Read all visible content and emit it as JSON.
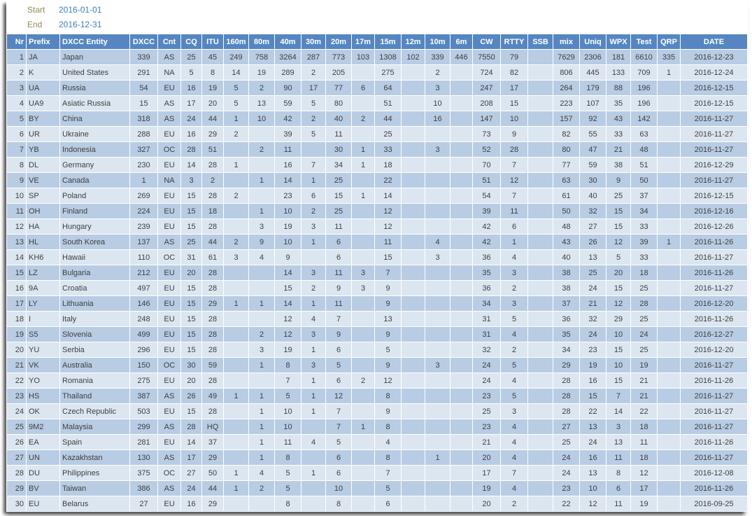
{
  "header": {
    "start_label": "Start",
    "start_value": "2016-01-01",
    "end_label": "End",
    "end_value": "2016-12-31"
  },
  "colors": {
    "header_bg": "#5586C2",
    "row_band_dark": "#B8CCE4",
    "row_band_light": "#DCE6F1",
    "cell_text": "#3F3F3F",
    "start_end_label": "#948A54",
    "start_end_value": "#3C7DC4"
  },
  "table": {
    "columns": [
      "Nr",
      "Prefix",
      "DXCC Entity",
      "DXCC",
      "Cnt",
      "CQ",
      "ITU",
      "160m",
      "80m",
      "40m",
      "30m",
      "20m",
      "17m",
      "15m",
      "12m",
      "10m",
      "6m",
      "CW",
      "RTTY",
      "SSB",
      "mix",
      "Uniq",
      "WPX",
      "Test",
      "QRP",
      "DATE"
    ],
    "rows": [
      [
        "1",
        "JA",
        "Japan",
        "339",
        "AS",
        "25",
        "45",
        "249",
        "758",
        "3264",
        "287",
        "773",
        "103",
        "1308",
        "102",
        "339",
        "446",
        "7550",
        "79",
        "",
        "7629",
        "2306",
        "181",
        "6610",
        "335",
        "2016-12-23"
      ],
      [
        "2",
        "K",
        "United States",
        "291",
        "NA",
        "5",
        "8",
        "14",
        "19",
        "289",
        "2",
        "205",
        "",
        "275",
        "",
        "2",
        "",
        "724",
        "82",
        "",
        "806",
        "445",
        "133",
        "709",
        "1",
        "2016-12-24"
      ],
      [
        "3",
        "UA",
        "Russia",
        "54",
        "EU",
        "16",
        "19",
        "5",
        "2",
        "90",
        "17",
        "77",
        "6",
        "64",
        "",
        "3",
        "",
        "247",
        "17",
        "",
        "264",
        "179",
        "88",
        "196",
        "",
        "2016-12-15"
      ],
      [
        "4",
        "UA9",
        "Asiatic Russia",
        "15",
        "AS",
        "17",
        "20",
        "5",
        "13",
        "59",
        "5",
        "80",
        "",
        "51",
        "",
        "10",
        "",
        "208",
        "15",
        "",
        "223",
        "107",
        "35",
        "196",
        "",
        "2016-12-15"
      ],
      [
        "5",
        "BY",
        "China",
        "318",
        "AS",
        "24",
        "44",
        "1",
        "10",
        "42",
        "2",
        "40",
        "2",
        "44",
        "",
        "16",
        "",
        "147",
        "10",
        "",
        "157",
        "92",
        "43",
        "142",
        "",
        "2016-11-27"
      ],
      [
        "6",
        "UR",
        "Ukraine",
        "288",
        "EU",
        "16",
        "29",
        "2",
        "",
        "39",
        "5",
        "11",
        "",
        "25",
        "",
        "",
        "",
        "73",
        "9",
        "",
        "82",
        "55",
        "33",
        "63",
        "",
        "2016-11-27"
      ],
      [
        "7",
        "YB",
        "Indonesia",
        "327",
        "OC",
        "28",
        "51",
        "",
        "2",
        "11",
        "",
        "30",
        "1",
        "33",
        "",
        "3",
        "",
        "52",
        "28",
        "",
        "80",
        "47",
        "21",
        "48",
        "",
        "2016-11-27"
      ],
      [
        "8",
        "DL",
        "Germany",
        "230",
        "EU",
        "14",
        "28",
        "1",
        "",
        "16",
        "7",
        "34",
        "1",
        "18",
        "",
        "",
        "",
        "70",
        "7",
        "",
        "77",
        "59",
        "38",
        "51",
        "",
        "2016-12-29"
      ],
      [
        "9",
        "VE",
        "Canada",
        "1",
        "NA",
        "3",
        "2",
        "",
        "1",
        "14",
        "1",
        "25",
        "",
        "22",
        "",
        "",
        "",
        "51",
        "12",
        "",
        "63",
        "30",
        "9",
        "50",
        "",
        "2016-11-27"
      ],
      [
        "10",
        "SP",
        "Poland",
        "269",
        "EU",
        "15",
        "28",
        "2",
        "",
        "23",
        "6",
        "15",
        "1",
        "14",
        "",
        "",
        "",
        "54",
        "7",
        "",
        "61",
        "40",
        "25",
        "37",
        "",
        "2016-12-15"
      ],
      [
        "11",
        "OH",
        "Finland",
        "224",
        "EU",
        "15",
        "18",
        "",
        "1",
        "10",
        "2",
        "25",
        "",
        "12",
        "",
        "",
        "",
        "39",
        "11",
        "",
        "50",
        "32",
        "15",
        "34",
        "",
        "2016-12-16"
      ],
      [
        "12",
        "HA",
        "Hungary",
        "239",
        "EU",
        "15",
        "28",
        "",
        "3",
        "19",
        "3",
        "11",
        "",
        "12",
        "",
        "",
        "",
        "42",
        "6",
        "",
        "48",
        "27",
        "15",
        "33",
        "",
        "2016-12-26"
      ],
      [
        "13",
        "HL",
        "South Korea",
        "137",
        "AS",
        "25",
        "44",
        "2",
        "9",
        "10",
        "1",
        "6",
        "",
        "11",
        "",
        "4",
        "",
        "42",
        "1",
        "",
        "43",
        "26",
        "12",
        "39",
        "1",
        "2016-11-26"
      ],
      [
        "14",
        "KH6",
        "Hawaii",
        "110",
        "OC",
        "31",
        "61",
        "3",
        "4",
        "9",
        "",
        "6",
        "",
        "15",
        "",
        "3",
        "",
        "36",
        "4",
        "",
        "40",
        "13",
        "5",
        "33",
        "",
        "2016-11-27"
      ],
      [
        "15",
        "LZ",
        "Bulgaria",
        "212",
        "EU",
        "20",
        "28",
        "",
        "",
        "14",
        "3",
        "11",
        "3",
        "7",
        "",
        "",
        "",
        "35",
        "3",
        "",
        "38",
        "25",
        "20",
        "18",
        "",
        "2016-11-26"
      ],
      [
        "16",
        "9A",
        "Croatia",
        "497",
        "EU",
        "15",
        "28",
        "",
        "",
        "15",
        "2",
        "9",
        "3",
        "9",
        "",
        "",
        "",
        "36",
        "2",
        "",
        "38",
        "24",
        "15",
        "25",
        "",
        "2016-11-27"
      ],
      [
        "17",
        "LY",
        "Lithuania",
        "146",
        "EU",
        "15",
        "29",
        "1",
        "1",
        "14",
        "1",
        "11",
        "",
        "9",
        "",
        "",
        "",
        "34",
        "3",
        "",
        "37",
        "21",
        "12",
        "28",
        "",
        "2016-12-20"
      ],
      [
        "18",
        "I",
        "Italy",
        "248",
        "EU",
        "15",
        "28",
        "",
        "",
        "12",
        "4",
        "7",
        "",
        "13",
        "",
        "",
        "",
        "31",
        "5",
        "",
        "36",
        "32",
        "29",
        "25",
        "",
        "2016-11-26"
      ],
      [
        "19",
        "S5",
        "Slovenia",
        "499",
        "EU",
        "15",
        "28",
        "",
        "2",
        "12",
        "3",
        "9",
        "",
        "9",
        "",
        "",
        "",
        "31",
        "4",
        "",
        "35",
        "24",
        "10",
        "24",
        "",
        "2016-12-27"
      ],
      [
        "20",
        "YU",
        "Serbia",
        "296",
        "EU",
        "15",
        "28",
        "",
        "3",
        "19",
        "1",
        "6",
        "",
        "5",
        "",
        "",
        "",
        "32",
        "2",
        "",
        "34",
        "23",
        "15",
        "25",
        "",
        "2016-12-20"
      ],
      [
        "21",
        "VK",
        "Australia",
        "150",
        "OC",
        "30",
        "59",
        "",
        "1",
        "8",
        "3",
        "5",
        "",
        "9",
        "",
        "3",
        "",
        "24",
        "5",
        "",
        "29",
        "19",
        "10",
        "19",
        "",
        "2016-11-27"
      ],
      [
        "22",
        "YO",
        "Romania",
        "275",
        "EU",
        "20",
        "28",
        "",
        "",
        "7",
        "1",
        "6",
        "2",
        "12",
        "",
        "",
        "",
        "24",
        "4",
        "",
        "28",
        "16",
        "15",
        "21",
        "",
        "2016-11-26"
      ],
      [
        "23",
        "HS",
        "Thailand",
        "387",
        "AS",
        "26",
        "49",
        "1",
        "1",
        "5",
        "1",
        "12",
        "",
        "8",
        "",
        "",
        "",
        "23",
        "5",
        "",
        "28",
        "15",
        "7",
        "21",
        "",
        "2016-11-27"
      ],
      [
        "24",
        "OK",
        "Czech Republic",
        "503",
        "EU",
        "15",
        "28",
        "",
        "1",
        "10",
        "1",
        "7",
        "",
        "9",
        "",
        "",
        "",
        "25",
        "3",
        "",
        "28",
        "22",
        "14",
        "22",
        "",
        "2016-11-27"
      ],
      [
        "25",
        "9M2",
        "Malaysia",
        "299",
        "AS",
        "28",
        "HQ",
        "",
        "1",
        "10",
        "",
        "7",
        "1",
        "8",
        "",
        "",
        "",
        "23",
        "4",
        "",
        "27",
        "13",
        "3",
        "18",
        "",
        "2016-11-27"
      ],
      [
        "26",
        "EA",
        "Spain",
        "281",
        "EU",
        "14",
        "37",
        "",
        "1",
        "11",
        "4",
        "5",
        "",
        "4",
        "",
        "",
        "",
        "21",
        "4",
        "",
        "25",
        "24",
        "13",
        "11",
        "",
        "2016-11-26"
      ],
      [
        "27",
        "UN",
        "Kazakhstan",
        "130",
        "AS",
        "17",
        "29",
        "",
        "1",
        "8",
        "",
        "6",
        "",
        "8",
        "",
        "1",
        "",
        "20",
        "4",
        "",
        "24",
        "16",
        "11",
        "18",
        "",
        "2016-11-27"
      ],
      [
        "28",
        "DU",
        "Philippines",
        "375",
        "OC",
        "27",
        "50",
        "1",
        "4",
        "5",
        "1",
        "6",
        "",
        "7",
        "",
        "",
        "",
        "17",
        "7",
        "",
        "24",
        "13",
        "8",
        "12",
        "",
        "2016-12-08"
      ],
      [
        "29",
        "BV",
        "Taiwan",
        "386",
        "AS",
        "24",
        "44",
        "1",
        "2",
        "5",
        "",
        "10",
        "",
        "5",
        "",
        "",
        "",
        "19",
        "4",
        "",
        "23",
        "10",
        "6",
        "17",
        "",
        "2016-11-26"
      ],
      [
        "30",
        "EU",
        "Belarus",
        "27",
        "EU",
        "16",
        "29",
        "",
        "",
        "8",
        "",
        "8",
        "",
        "6",
        "",
        "",
        "",
        "20",
        "2",
        "",
        "22",
        "12",
        "11",
        "19",
        "",
        "2016-09-25"
      ]
    ]
  }
}
